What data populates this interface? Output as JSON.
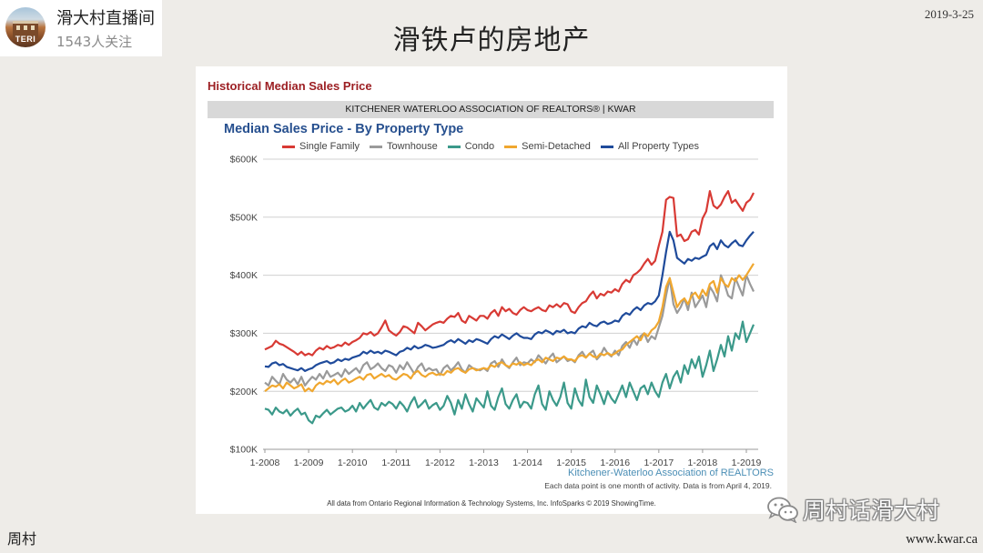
{
  "stream": {
    "avatar_text": "TERI",
    "channel_name": "滑大村直播间",
    "followers": "1543人关注"
  },
  "slide": {
    "date": "2019-3-25",
    "title": "滑铁卢的房地产",
    "footer_left": "周村",
    "footer_right": "www.kwar.ca"
  },
  "watermark": {
    "icon": "wechat-icon",
    "text": "周村话滑大村"
  },
  "chart_data": {
    "type": "line",
    "header": "Historical Median Sales Price",
    "source_band": "KITCHENER WATERLOO ASSOCIATION OF REALTORS® | KWAR",
    "title": "Median Sales Price - By Property Type",
    "ylim": [
      100,
      600
    ],
    "y_ticks": [
      {
        "value": 600,
        "label": "$600K"
      },
      {
        "value": 500,
        "label": "$500K"
      },
      {
        "value": 400,
        "label": "$400K"
      },
      {
        "value": 300,
        "label": "$300K"
      },
      {
        "value": 200,
        "label": "$200K"
      },
      {
        "value": 100,
        "label": "$100K"
      }
    ],
    "x_tick_labels": [
      "1-2008",
      "1-2009",
      "1-2010",
      "1-2011",
      "1-2012",
      "1-2013",
      "1-2014",
      "1-2015",
      "1-2016",
      "1-2017",
      "1-2018",
      "1-2019"
    ],
    "x": [
      "1-2008",
      "2-2008",
      "3-2008",
      "4-2008",
      "5-2008",
      "6-2008",
      "7-2008",
      "8-2008",
      "9-2008",
      "10-2008",
      "11-2008",
      "12-2008",
      "1-2009",
      "2-2009",
      "3-2009",
      "4-2009",
      "5-2009",
      "6-2009",
      "7-2009",
      "8-2009",
      "9-2009",
      "10-2009",
      "11-2009",
      "12-2009",
      "1-2010",
      "2-2010",
      "3-2010",
      "4-2010",
      "5-2010",
      "6-2010",
      "7-2010",
      "8-2010",
      "9-2010",
      "10-2010",
      "11-2010",
      "12-2010",
      "1-2011",
      "2-2011",
      "3-2011",
      "4-2011",
      "5-2011",
      "6-2011",
      "7-2011",
      "8-2011",
      "9-2011",
      "10-2011",
      "11-2011",
      "12-2011",
      "1-2012",
      "2-2012",
      "3-2012",
      "4-2012",
      "5-2012",
      "6-2012",
      "7-2012",
      "8-2012",
      "9-2012",
      "10-2012",
      "11-2012",
      "12-2012",
      "1-2013",
      "2-2013",
      "3-2013",
      "4-2013",
      "5-2013",
      "6-2013",
      "7-2013",
      "8-2013",
      "9-2013",
      "10-2013",
      "11-2013",
      "12-2013",
      "1-2014",
      "2-2014",
      "3-2014",
      "4-2014",
      "5-2014",
      "6-2014",
      "7-2014",
      "8-2014",
      "9-2014",
      "10-2014",
      "11-2014",
      "12-2014",
      "1-2015",
      "2-2015",
      "3-2015",
      "4-2015",
      "5-2015",
      "6-2015",
      "7-2015",
      "8-2015",
      "9-2015",
      "10-2015",
      "11-2015",
      "12-2015",
      "1-2016",
      "2-2016",
      "3-2016",
      "4-2016",
      "5-2016",
      "6-2016",
      "7-2016",
      "8-2016",
      "9-2016",
      "10-2016",
      "11-2016",
      "12-2016",
      "1-2017",
      "2-2017",
      "3-2017",
      "4-2017",
      "5-2017",
      "6-2017",
      "7-2017",
      "8-2017",
      "9-2017",
      "10-2017",
      "11-2017",
      "12-2017",
      "1-2018",
      "2-2018",
      "3-2018",
      "4-2018",
      "5-2018",
      "6-2018",
      "7-2018",
      "8-2018",
      "9-2018",
      "10-2018",
      "11-2018",
      "12-2018",
      "1-2019",
      "2-2019",
      "3-2019"
    ],
    "series": [
      {
        "name": "Single Family",
        "color": "#d83a34",
        "values": [
          272,
          275,
          278,
          287,
          282,
          280,
          276,
          272,
          268,
          263,
          268,
          262,
          265,
          262,
          270,
          275,
          272,
          278,
          274,
          276,
          280,
          278,
          284,
          280,
          285,
          288,
          292,
          300,
          298,
          302,
          296,
          300,
          310,
          322,
          305,
          300,
          296,
          302,
          312,
          310,
          305,
          300,
          318,
          312,
          305,
          310,
          315,
          318,
          320,
          318,
          325,
          330,
          328,
          335,
          322,
          318,
          330,
          326,
          322,
          330,
          330,
          325,
          335,
          340,
          330,
          345,
          338,
          342,
          335,
          332,
          340,
          345,
          340,
          338,
          342,
          345,
          340,
          338,
          348,
          345,
          350,
          345,
          352,
          350,
          338,
          335,
          345,
          352,
          355,
          365,
          372,
          360,
          368,
          365,
          372,
          370,
          376,
          372,
          385,
          392,
          388,
          400,
          404,
          410,
          420,
          428,
          418,
          425,
          451,
          475,
          530,
          535,
          533,
          467,
          470,
          459,
          462,
          475,
          478,
          470,
          498,
          510,
          545,
          520,
          515,
          522,
          535,
          545,
          525,
          530,
          520,
          511,
          525,
          530,
          542
        ]
      },
      {
        "name": "Townhouse",
        "color": "#9a9a9a",
        "values": [
          215,
          210,
          225,
          218,
          212,
          230,
          220,
          215,
          222,
          212,
          225,
          210,
          218,
          225,
          220,
          230,
          222,
          235,
          225,
          228,
          232,
          225,
          238,
          230,
          235,
          240,
          232,
          245,
          250,
          238,
          242,
          248,
          240,
          235,
          245,
          242,
          232,
          245,
          238,
          250,
          240,
          230,
          242,
          248,
          235,
          240,
          236,
          238,
          228,
          240,
          245,
          236,
          242,
          250,
          238,
          232,
          245,
          240,
          238,
          236,
          240,
          235,
          248,
          252,
          242,
          255,
          245,
          240,
          250,
          258,
          245,
          250,
          248,
          255,
          250,
          262,
          255,
          248,
          258,
          265,
          250,
          255,
          260,
          252,
          255,
          250,
          262,
          268,
          258,
          265,
          270,
          255,
          262,
          275,
          265,
          260,
          270,
          262,
          278,
          285,
          275,
          290,
          280,
          295,
          300,
          285,
          295,
          290,
          310,
          330,
          365,
          395,
          350,
          335,
          345,
          360,
          340,
          370,
          345,
          355,
          365,
          345,
          380,
          370,
          355,
          400,
          385,
          365,
          360,
          395,
          380,
          365,
          400,
          385,
          372
        ]
      },
      {
        "name": "Condo",
        "color": "#3b998a",
        "values": [
          170,
          168,
          160,
          172,
          165,
          162,
          168,
          158,
          165,
          170,
          160,
          163,
          150,
          145,
          158,
          155,
          162,
          168,
          160,
          165,
          170,
          172,
          165,
          168,
          175,
          165,
          180,
          170,
          178,
          185,
          172,
          168,
          180,
          175,
          182,
          178,
          170,
          182,
          175,
          165,
          180,
          190,
          172,
          178,
          185,
          170,
          176,
          180,
          168,
          175,
          192,
          180,
          160,
          185,
          170,
          195,
          178,
          165,
          188,
          180,
          172,
          200,
          175,
          168,
          190,
          205,
          178,
          170,
          185,
          195,
          172,
          182,
          180,
          170,
          195,
          210,
          178,
          168,
          200,
          185,
          175,
          190,
          215,
          180,
          170,
          205,
          185,
          175,
          220,
          190,
          180,
          210,
          195,
          178,
          200,
          188,
          180,
          195,
          210,
          190,
          215,
          200,
          185,
          205,
          210,
          195,
          215,
          200,
          190,
          215,
          230,
          205,
          225,
          235,
          215,
          245,
          230,
          255,
          240,
          260,
          225,
          245,
          270,
          235,
          255,
          280,
          260,
          295,
          270,
          300,
          290,
          320,
          285,
          300,
          315
        ]
      },
      {
        "name": "Semi-Detached",
        "color": "#f0a72f",
        "values": [
          200,
          205,
          210,
          208,
          212,
          205,
          215,
          210,
          205,
          208,
          212,
          200,
          205,
          200,
          210,
          215,
          212,
          218,
          215,
          220,
          212,
          218,
          222,
          215,
          218,
          222,
          225,
          220,
          228,
          230,
          222,
          226,
          230,
          225,
          228,
          222,
          220,
          225,
          230,
          228,
          222,
          232,
          235,
          228,
          225,
          230,
          232,
          228,
          230,
          228,
          235,
          232,
          238,
          240,
          235,
          232,
          238,
          240,
          236,
          238,
          240,
          238,
          245,
          242,
          248,
          250,
          245,
          242,
          248,
          246,
          250,
          245,
          248,
          245,
          252,
          255,
          250,
          258,
          255,
          252,
          258,
          256,
          260,
          255,
          255,
          252,
          260,
          262,
          258,
          265,
          260,
          258,
          265,
          262,
          266,
          262,
          265,
          270,
          272,
          280,
          285,
          290,
          295,
          288,
          300,
          295,
          305,
          310,
          320,
          345,
          380,
          395,
          370,
          345,
          355,
          360,
          350,
          365,
          370,
          360,
          375,
          365,
          385,
          390,
          370,
          395,
          385,
          380,
          395,
          390,
          400,
          392,
          400,
          410,
          420
        ]
      },
      {
        "name": "All Property Types",
        "color": "#1f4b9b",
        "values": [
          243,
          242,
          248,
          250,
          245,
          247,
          242,
          240,
          238,
          236,
          240,
          235,
          238,
          240,
          245,
          248,
          250,
          252,
          248,
          250,
          255,
          252,
          256,
          254,
          258,
          260,
          262,
          268,
          265,
          270,
          266,
          268,
          265,
          270,
          268,
          265,
          262,
          268,
          270,
          275,
          272,
          278,
          274,
          276,
          280,
          278,
          275,
          276,
          278,
          280,
          285,
          288,
          284,
          290,
          286,
          282,
          288,
          285,
          290,
          288,
          285,
          282,
          290,
          295,
          292,
          298,
          294,
          290,
          296,
          300,
          295,
          292,
          292,
          290,
          298,
          302,
          300,
          305,
          302,
          298,
          304,
          302,
          306,
          300,
          302,
          300,
          308,
          312,
          310,
          318,
          314,
          312,
          318,
          320,
          316,
          318,
          322,
          320,
          330,
          335,
          332,
          340,
          345,
          340,
          348,
          352,
          350,
          355,
          365,
          400,
          440,
          475,
          460,
          430,
          425,
          420,
          428,
          425,
          430,
          428,
          432,
          435,
          450,
          455,
          445,
          460,
          452,
          448,
          455,
          460,
          452,
          450,
          460,
          468,
          475
        ]
      }
    ],
    "grid": true,
    "legend": "top",
    "source_credit": "Kitchener-Waterloo Association of REALTORS",
    "note": "Each data point is one month of activity. Data is from April 4, 2019.",
    "data_source": "All data from Ontario Regional Information & Technology Systems, Inc. InfoSparks © 2019 ShowingTime."
  }
}
